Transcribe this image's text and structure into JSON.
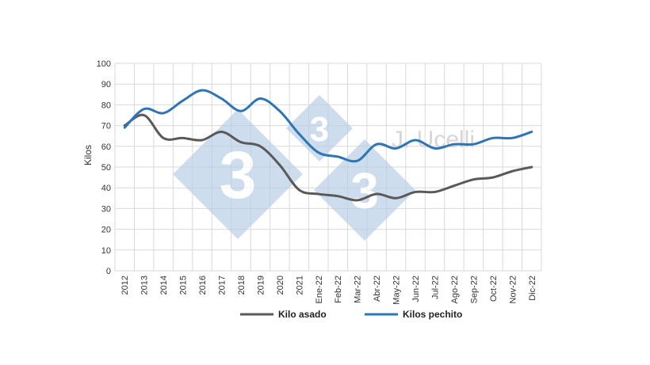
{
  "chart_data": {
    "type": "line",
    "x": [
      "2012",
      "2013",
      "2014",
      "2015",
      "2016",
      "2017",
      "2018",
      "2019",
      "2020",
      "2021",
      "Ene-22",
      "Feb-22",
      "Mar-22",
      "Abr-22",
      "May-22",
      "Jun-22",
      "Jul-22",
      "Ago-22",
      "Sep-22",
      "Oct-22",
      "Nov-22",
      "Dic-22"
    ],
    "series": [
      {
        "name": "Kilo asado",
        "color": "#595959",
        "values": [
          70,
          75,
          64,
          64,
          63,
          67,
          62,
          60,
          51,
          39,
          37,
          36,
          34,
          37,
          35,
          38,
          38,
          41,
          44,
          45,
          48,
          50
        ]
      },
      {
        "name": "Kilos pechito",
        "color": "#2e75b6",
        "values": [
          69,
          78,
          76,
          82,
          87,
          83,
          77,
          83,
          77,
          66,
          57,
          55,
          53,
          61,
          59,
          63,
          59,
          61,
          61,
          64,
          64,
          67
        ]
      }
    ],
    "ylabel": "Kilos",
    "xlabel": "",
    "title": "",
    "ylim": [
      0,
      100
    ],
    "yticks": [
      0,
      10,
      20,
      30,
      40,
      50,
      60,
      70,
      80,
      90,
      100
    ],
    "grid": true,
    "legend_position": "bottom"
  },
  "watermark": {
    "logo_text": "3",
    "logo_color": "#b8cfe6",
    "credit_text": "J. Ucelli"
  }
}
